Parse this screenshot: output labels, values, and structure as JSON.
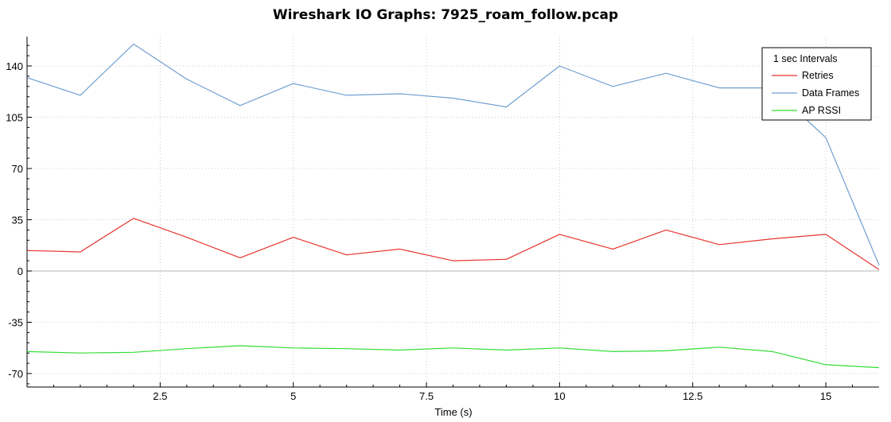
{
  "chart_data": {
    "type": "line",
    "title": "Wireshark IO Graphs: 7925_roam_follow.pcap",
    "xlabel": "Time (s)",
    "ylabel": "",
    "xlim": [
      0,
      16
    ],
    "ylim": [
      -80,
      160
    ],
    "x_ticks": [
      "2.5",
      "5",
      "7.5",
      "10",
      "12.5",
      "15"
    ],
    "y_ticks": [
      "-70",
      "-35",
      "0",
      "35",
      "70",
      "105",
      "140"
    ],
    "grid": true,
    "legend_position": "top-right",
    "legend_title": "1 sec Intervals",
    "x": [
      0,
      1,
      2,
      3,
      4,
      5,
      6,
      7,
      8,
      9,
      10,
      11,
      12,
      13,
      14,
      15,
      16
    ],
    "series": [
      {
        "name": "Retries",
        "color": "#e8342f",
        "values": [
          14,
          13,
          36,
          23,
          9,
          23,
          11,
          15,
          7,
          8,
          25,
          15,
          28,
          18,
          22,
          25,
          1
        ]
      },
      {
        "name": "Data Frames",
        "color": "#6f9fd0",
        "values": [
          132,
          120,
          155,
          131,
          113,
          128,
          120,
          121,
          118,
          112,
          140,
          126,
          135,
          125,
          125,
          91,
          4
        ]
      },
      {
        "name": "AP RSSI",
        "color": "#33dd33",
        "values": [
          -55,
          -56,
          -55.5,
          -53,
          -51,
          -52.5,
          -53,
          -54,
          -52.5,
          -54,
          -52.5,
          -55,
          -54.5,
          -52,
          -55,
          -64,
          -66
        ]
      }
    ]
  }
}
